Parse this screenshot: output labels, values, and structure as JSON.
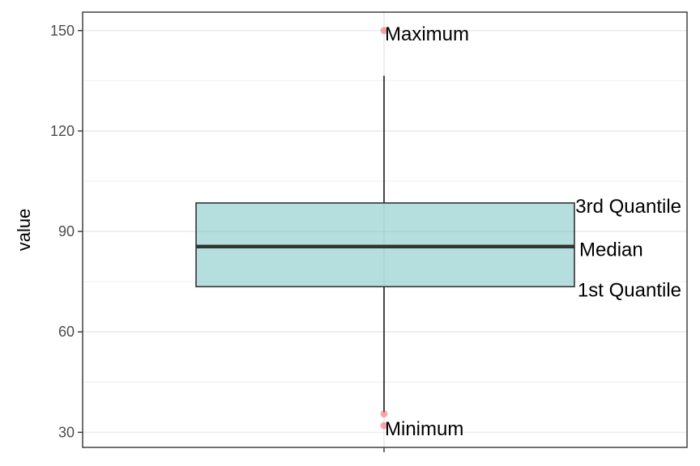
{
  "chart_data": {
    "type": "box",
    "ylabel": "value",
    "xlabel": "",
    "ylim": [
      25.5,
      155.5
    ],
    "y_ticks": [
      30,
      60,
      90,
      120,
      150
    ],
    "y_tick_labels": [
      "30",
      "60",
      "90",
      "120",
      "150"
    ],
    "grid": true,
    "box": {
      "q1": 73.5,
      "median": 85.5,
      "q3": 98.5,
      "whisker_low": 36,
      "whisker_high": 136.5
    },
    "points": [
      {
        "y": 150,
        "label": "Maximum"
      },
      {
        "y": 35.5,
        "label": ""
      },
      {
        "y": 32,
        "label": "Minimum"
      }
    ],
    "box_annotations": [
      {
        "stat": "q3",
        "label": "3rd Quantile"
      },
      {
        "stat": "median",
        "label": "Median"
      },
      {
        "stat": "q1",
        "label": "1st Quantile"
      }
    ],
    "colors": {
      "box_fill": "#6ac0be",
      "box_stroke": "#333333",
      "points": "#f0444a",
      "grid": "#ebebeb"
    }
  }
}
